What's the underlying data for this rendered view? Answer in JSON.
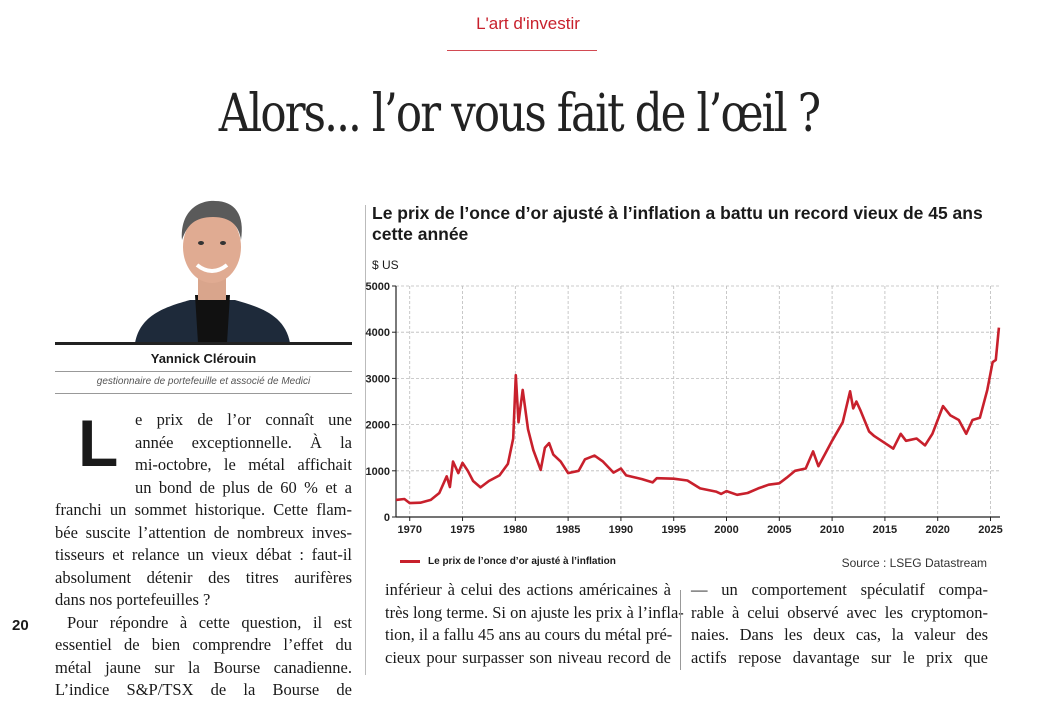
{
  "header": {
    "rubric": "L'art d'investir",
    "headline": "Alors... l’or vous fait de l’œil ?",
    "accent_color": "#c8202c"
  },
  "author": {
    "name": "Yannick Clérouin",
    "role": "gestionnaire de portefeuille et associé de Medici"
  },
  "article": {
    "drop_cap": "L",
    "lead_lines": [
      "e prix de l’or connaît une",
      "année exceptionnelle. À la",
      "mi-octobre, le métal affichait",
      "un bond de plus de 60 % et a"
    ],
    "column1_lines": [
      "franchi un sommet historique. Cette flam-",
      "bée suscite l’attention de nombreux inves-",
      "tisseurs et relance un vieux débat : faut-il",
      "absolument détenir des titres aurifères",
      "dans nos portefeuilles ?",
      "  Pour répondre à cette question, il est",
      "essentiel de bien comprendre l’effet du",
      "métal jaune sur la Bourse canadienne.",
      "L’indice S&P/TSX de la Bourse de"
    ],
    "column2_lines": [
      "inférieur à celui des actions américaines à",
      "très long terme. Si on ajuste les prix à l’infla-",
      "tion, il a fallu 45 ans au cours du métal pré-",
      "cieux pour surpasser son niveau record de"
    ],
    "column3_lines": [
      "— un comportement spéculatif compa-",
      "rable à celui observé avec les cryptomon-",
      "naies. Dans les deux cas, la valeur des",
      "actifs repose davantage sur le prix que"
    ],
    "page_number": "20"
  },
  "chart_data": {
    "type": "line",
    "title": "Le prix de l’once d’or ajusté à l’inflation a battu un record vieux de 45 ans cette année",
    "ylabel": "$ US",
    "xlim": [
      1968.7,
      2025.9
    ],
    "ylim": [
      0,
      5000
    ],
    "x_ticks": [
      "1970",
      "1975",
      "1980",
      "1985",
      "1990",
      "1995",
      "2000",
      "2005",
      "2010",
      "2015",
      "2020",
      "2025"
    ],
    "y_ticks": [
      "0",
      "1000",
      "2000",
      "3000",
      "4000",
      "5000"
    ],
    "grid": true,
    "legend_position": "bottom-left",
    "source": "Source : LSEG Datastream",
    "line_color": "#c8202c",
    "series": [
      {
        "name": "Le prix de l’once d’or ajusté à l’inflation",
        "points": [
          [
            1968.7,
            370
          ],
          [
            1969.5,
            390
          ],
          [
            1970,
            300
          ],
          [
            1971,
            310
          ],
          [
            1972,
            370
          ],
          [
            1972.8,
            520
          ],
          [
            1973.5,
            880
          ],
          [
            1973.8,
            650
          ],
          [
            1974.1,
            1200
          ],
          [
            1974.6,
            950
          ],
          [
            1975,
            1170
          ],
          [
            1975.5,
            1000
          ],
          [
            1976,
            780
          ],
          [
            1976.7,
            640
          ],
          [
            1977.5,
            780
          ],
          [
            1978.5,
            900
          ],
          [
            1979.3,
            1150
          ],
          [
            1979.8,
            1700
          ],
          [
            1980.05,
            3070
          ],
          [
            1980.3,
            2050
          ],
          [
            1980.7,
            2750
          ],
          [
            1981.2,
            1900
          ],
          [
            1981.7,
            1450
          ],
          [
            1982.4,
            1020
          ],
          [
            1982.8,
            1500
          ],
          [
            1983.2,
            1600
          ],
          [
            1983.6,
            1350
          ],
          [
            1984.3,
            1200
          ],
          [
            1985,
            950
          ],
          [
            1986,
            1000
          ],
          [
            1986.6,
            1250
          ],
          [
            1987.5,
            1330
          ],
          [
            1988.3,
            1200
          ],
          [
            1989.3,
            960
          ],
          [
            1990,
            1050
          ],
          [
            1990.5,
            900
          ],
          [
            1992,
            820
          ],
          [
            1993,
            750
          ],
          [
            1993.4,
            840
          ],
          [
            1995,
            830
          ],
          [
            1996.3,
            790
          ],
          [
            1997.5,
            620
          ],
          [
            1999,
            550
          ],
          [
            1999.5,
            500
          ],
          [
            2000,
            560
          ],
          [
            2001,
            480
          ],
          [
            2002,
            520
          ],
          [
            2003,
            620
          ],
          [
            2004,
            700
          ],
          [
            2005,
            730
          ],
          [
            2005.7,
            850
          ],
          [
            2006.5,
            1000
          ],
          [
            2007.5,
            1050
          ],
          [
            2008.2,
            1420
          ],
          [
            2008.7,
            1100
          ],
          [
            2009.3,
            1350
          ],
          [
            2010,
            1650
          ],
          [
            2011,
            2050
          ],
          [
            2011.7,
            2720
          ],
          [
            2012,
            2350
          ],
          [
            2012.3,
            2500
          ],
          [
            2012.7,
            2300
          ],
          [
            2013.5,
            1850
          ],
          [
            2014,
            1750
          ],
          [
            2015,
            1600
          ],
          [
            2015.8,
            1480
          ],
          [
            2016.5,
            1800
          ],
          [
            2017,
            1650
          ],
          [
            2018,
            1700
          ],
          [
            2018.8,
            1550
          ],
          [
            2019.5,
            1800
          ],
          [
            2020.5,
            2400
          ],
          [
            2021.2,
            2200
          ],
          [
            2022,
            2100
          ],
          [
            2022.7,
            1800
          ],
          [
            2023.3,
            2100
          ],
          [
            2024,
            2150
          ],
          [
            2024.7,
            2750
          ],
          [
            2025.2,
            3350
          ],
          [
            2025.5,
            3400
          ],
          [
            2025.8,
            4100
          ]
        ]
      }
    ]
  }
}
